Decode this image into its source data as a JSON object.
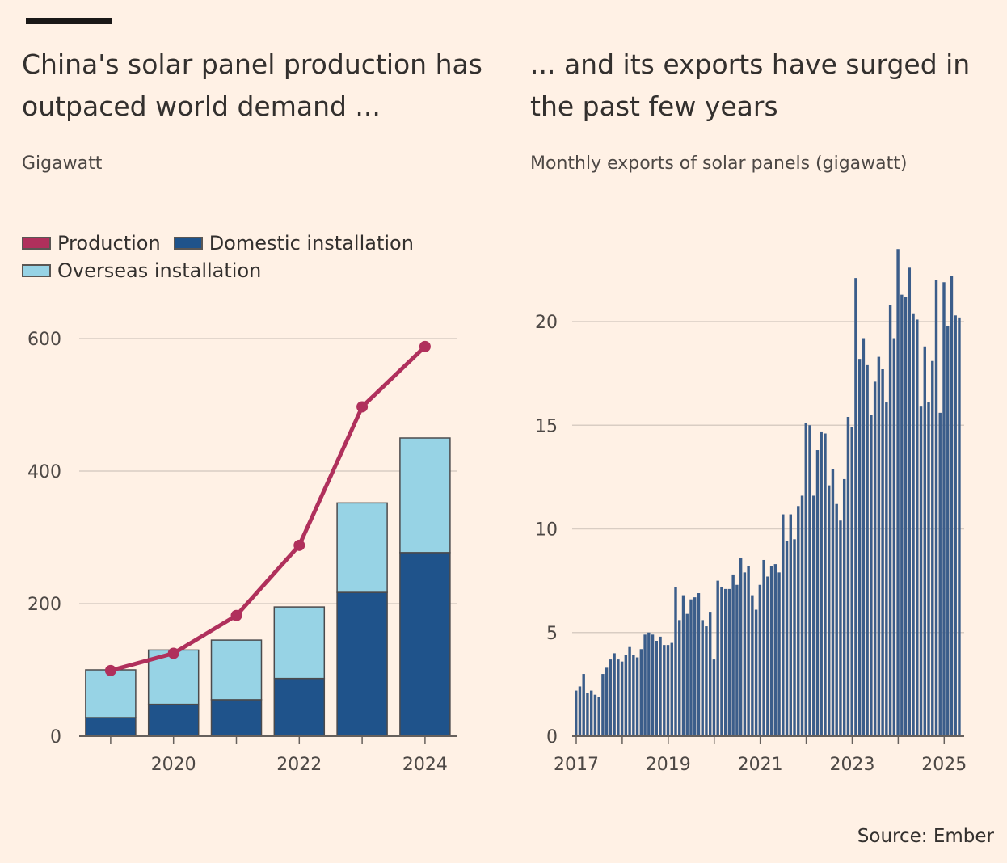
{
  "left": {
    "title": "China's solar panel production has outpaced world demand ...",
    "subtitle": "Gigawatt",
    "legend": {
      "production": "Production",
      "domestic": "Domestic installation",
      "overseas": "Overseas installation"
    }
  },
  "right": {
    "title": "... and its exports have surged in the past few years",
    "subtitle": "Monthly exports of solar panels (gigawatt)"
  },
  "source": "Source: Ember",
  "colors": {
    "production": "#b0305c",
    "domestic": "#1f538b",
    "overseas": "#97d3e5",
    "export_bar": "#3b5d8a",
    "background": "#fff1e5"
  },
  "chart_data": [
    {
      "type": "bar",
      "stacked": true,
      "x": [
        2019,
        2020,
        2021,
        2022,
        2023,
        2024
      ],
      "xtick_labels": [
        "2020",
        "2022",
        "2024"
      ],
      "xticks": [
        2020,
        2022,
        2024
      ],
      "series": [
        {
          "name": "Domestic installation",
          "values": [
            28,
            48,
            55,
            87,
            217,
            277
          ]
        },
        {
          "name": "Overseas installation",
          "values": [
            72,
            82,
            90,
            108,
            135,
            173
          ]
        },
        {
          "name": "Production",
          "type": "line",
          "values": [
            99,
            125,
            182,
            288,
            497,
            588
          ]
        }
      ],
      "ylim": [
        0,
        600
      ],
      "yticks": [
        0,
        200,
        400,
        600
      ],
      "grid": true,
      "legend": "top-left"
    },
    {
      "type": "bar",
      "x_start": "2017-01",
      "frequency": "monthly",
      "xtick_labels": [
        "2017",
        "2019",
        "2021",
        "2023",
        "2025"
      ],
      "values": [
        2.2,
        2.4,
        3.0,
        2.1,
        2.2,
        2.0,
        1.9,
        3.0,
        3.3,
        3.7,
        4.0,
        3.7,
        3.6,
        3.9,
        4.3,
        3.9,
        3.8,
        4.2,
        4.9,
        5.0,
        4.9,
        4.6,
        4.8,
        4.4,
        4.4,
        4.5,
        7.2,
        5.6,
        6.8,
        5.9,
        6.6,
        6.7,
        6.9,
        5.6,
        5.3,
        6.0,
        3.7,
        7.5,
        7.2,
        7.1,
        7.1,
        7.8,
        7.3,
        8.6,
        7.9,
        8.2,
        6.8,
        6.1,
        7.3,
        8.5,
        7.7,
        8.2,
        8.3,
        7.9,
        10.7,
        9.4,
        10.7,
        9.5,
        11.1,
        11.6,
        15.1,
        15.0,
        11.6,
        13.8,
        14.7,
        14.6,
        12.1,
        12.9,
        11.2,
        10.4,
        12.4,
        15.4,
        14.9,
        22.1,
        18.2,
        19.2,
        17.9,
        15.5,
        17.1,
        18.3,
        17.7,
        16.1,
        20.8,
        19.2,
        23.5,
        21.3,
        21.2,
        22.6,
        20.4,
        20.1,
        15.9,
        18.8,
        16.1,
        18.1,
        22.0,
        15.6,
        21.9,
        19.8,
        22.2,
        20.3,
        20.2
      ],
      "ylim": [
        0,
        23.5
      ],
      "yticks": [
        0,
        5,
        10,
        15,
        20
      ],
      "grid": true
    }
  ]
}
